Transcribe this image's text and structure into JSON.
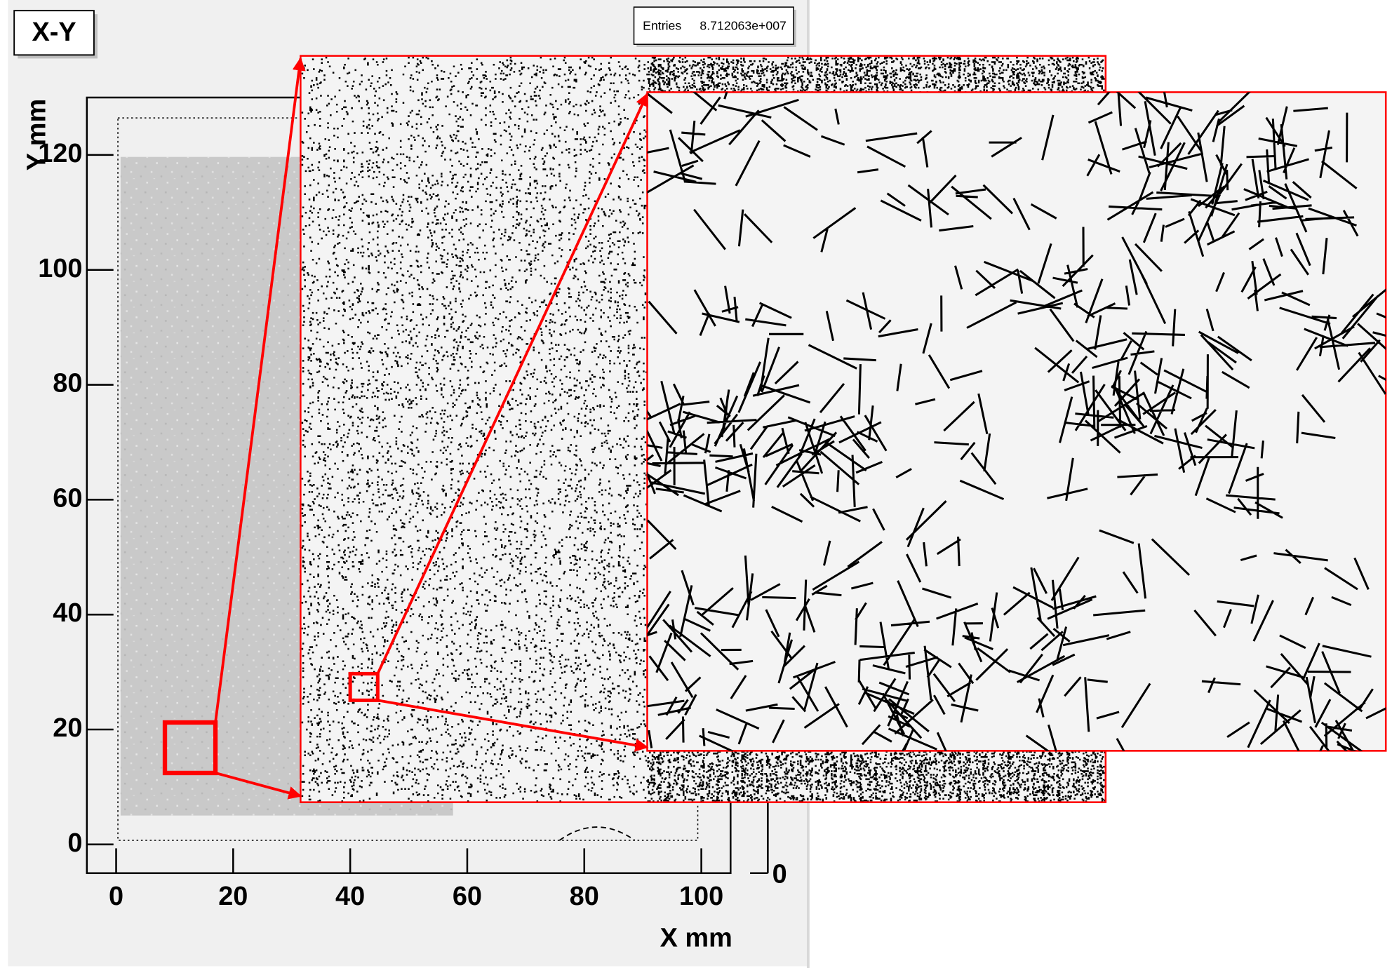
{
  "chart_data": {
    "type": "histogram2d",
    "title": "X-Y",
    "stats": {
      "label": "Entries",
      "value": "8.712063e+007"
    },
    "x_label": "X mm",
    "y_label": "Y mm",
    "xlim": [
      -5,
      105
    ],
    "xticks": [
      0,
      20,
      40,
      60,
      80,
      100
    ],
    "ylim": [
      -5,
      130
    ],
    "yticks": [
      0,
      20,
      40,
      60,
      80,
      100,
      120
    ],
    "zticks": [
      0
    ]
  }
}
